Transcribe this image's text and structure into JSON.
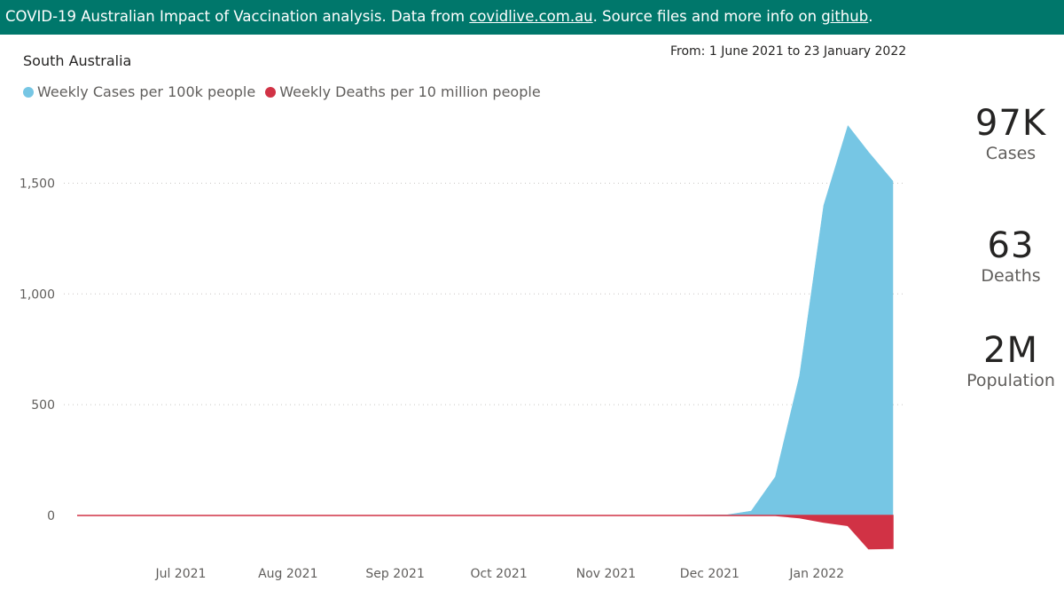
{
  "header": {
    "text_1": "COVID-19 Australian Impact of Vaccination analysis. Data from ",
    "link_1": "covidlive.com.au",
    "text_2": ". Source files and more info on ",
    "link_2": "github",
    "text_3": "."
  },
  "visual": {
    "region": "South Australia",
    "date_range": "From: 1 June 2021 to 23 January 2022"
  },
  "kpis": {
    "cases": {
      "value": "97K",
      "label": "Cases"
    },
    "deaths": {
      "value": "63",
      "label": "Deaths"
    },
    "population": {
      "value": "2M",
      "label": "Population"
    }
  },
  "colors": {
    "cases": "#76c6e4",
    "deaths": "#d13245",
    "banner": "#00776b"
  },
  "chart_data": {
    "type": "area",
    "legend_position": "top-left",
    "grid": "horizontal-dotted",
    "x_start": "2021-06-01",
    "x_end": "2022-01-23",
    "ylim": [
      -160,
      1850
    ],
    "y_ticks": [
      0,
      500,
      1000,
      1500
    ],
    "y_tick_labels": [
      "0",
      "500",
      "1,000",
      "1,500"
    ],
    "x_ticks": [
      "2021-07-01",
      "2021-08-01",
      "2021-09-01",
      "2021-10-01",
      "2021-11-01",
      "2021-12-01",
      "2022-01-01"
    ],
    "x_tick_labels": [
      "Jul 2021",
      "Aug 2021",
      "Sep 2021",
      "Oct 2021",
      "Nov 2021",
      "Dec 2021",
      "Jan 2022"
    ],
    "x": [
      "2021-06-01",
      "2021-07-01",
      "2021-08-01",
      "2021-09-01",
      "2021-10-01",
      "2021-11-01",
      "2021-11-22",
      "2021-11-29",
      "2021-12-06",
      "2021-12-13",
      "2021-12-20",
      "2021-12-27",
      "2022-01-03",
      "2022-01-10",
      "2022-01-16",
      "2022-01-23"
    ],
    "series": [
      {
        "name": "Weekly Cases per 100k people",
        "color": "#76c6e4",
        "values": [
          0,
          0,
          0,
          0,
          0,
          0,
          1,
          2,
          3,
          20,
          175,
          630,
          1400,
          1760,
          1640,
          1510
        ]
      },
      {
        "name": "Weekly Deaths per 10 million people",
        "color": "#d13245",
        "values": [
          0,
          0,
          0,
          0,
          0,
          0,
          0,
          0,
          0,
          0,
          0,
          -10,
          -30,
          -45,
          -150,
          -148
        ]
      }
    ]
  }
}
